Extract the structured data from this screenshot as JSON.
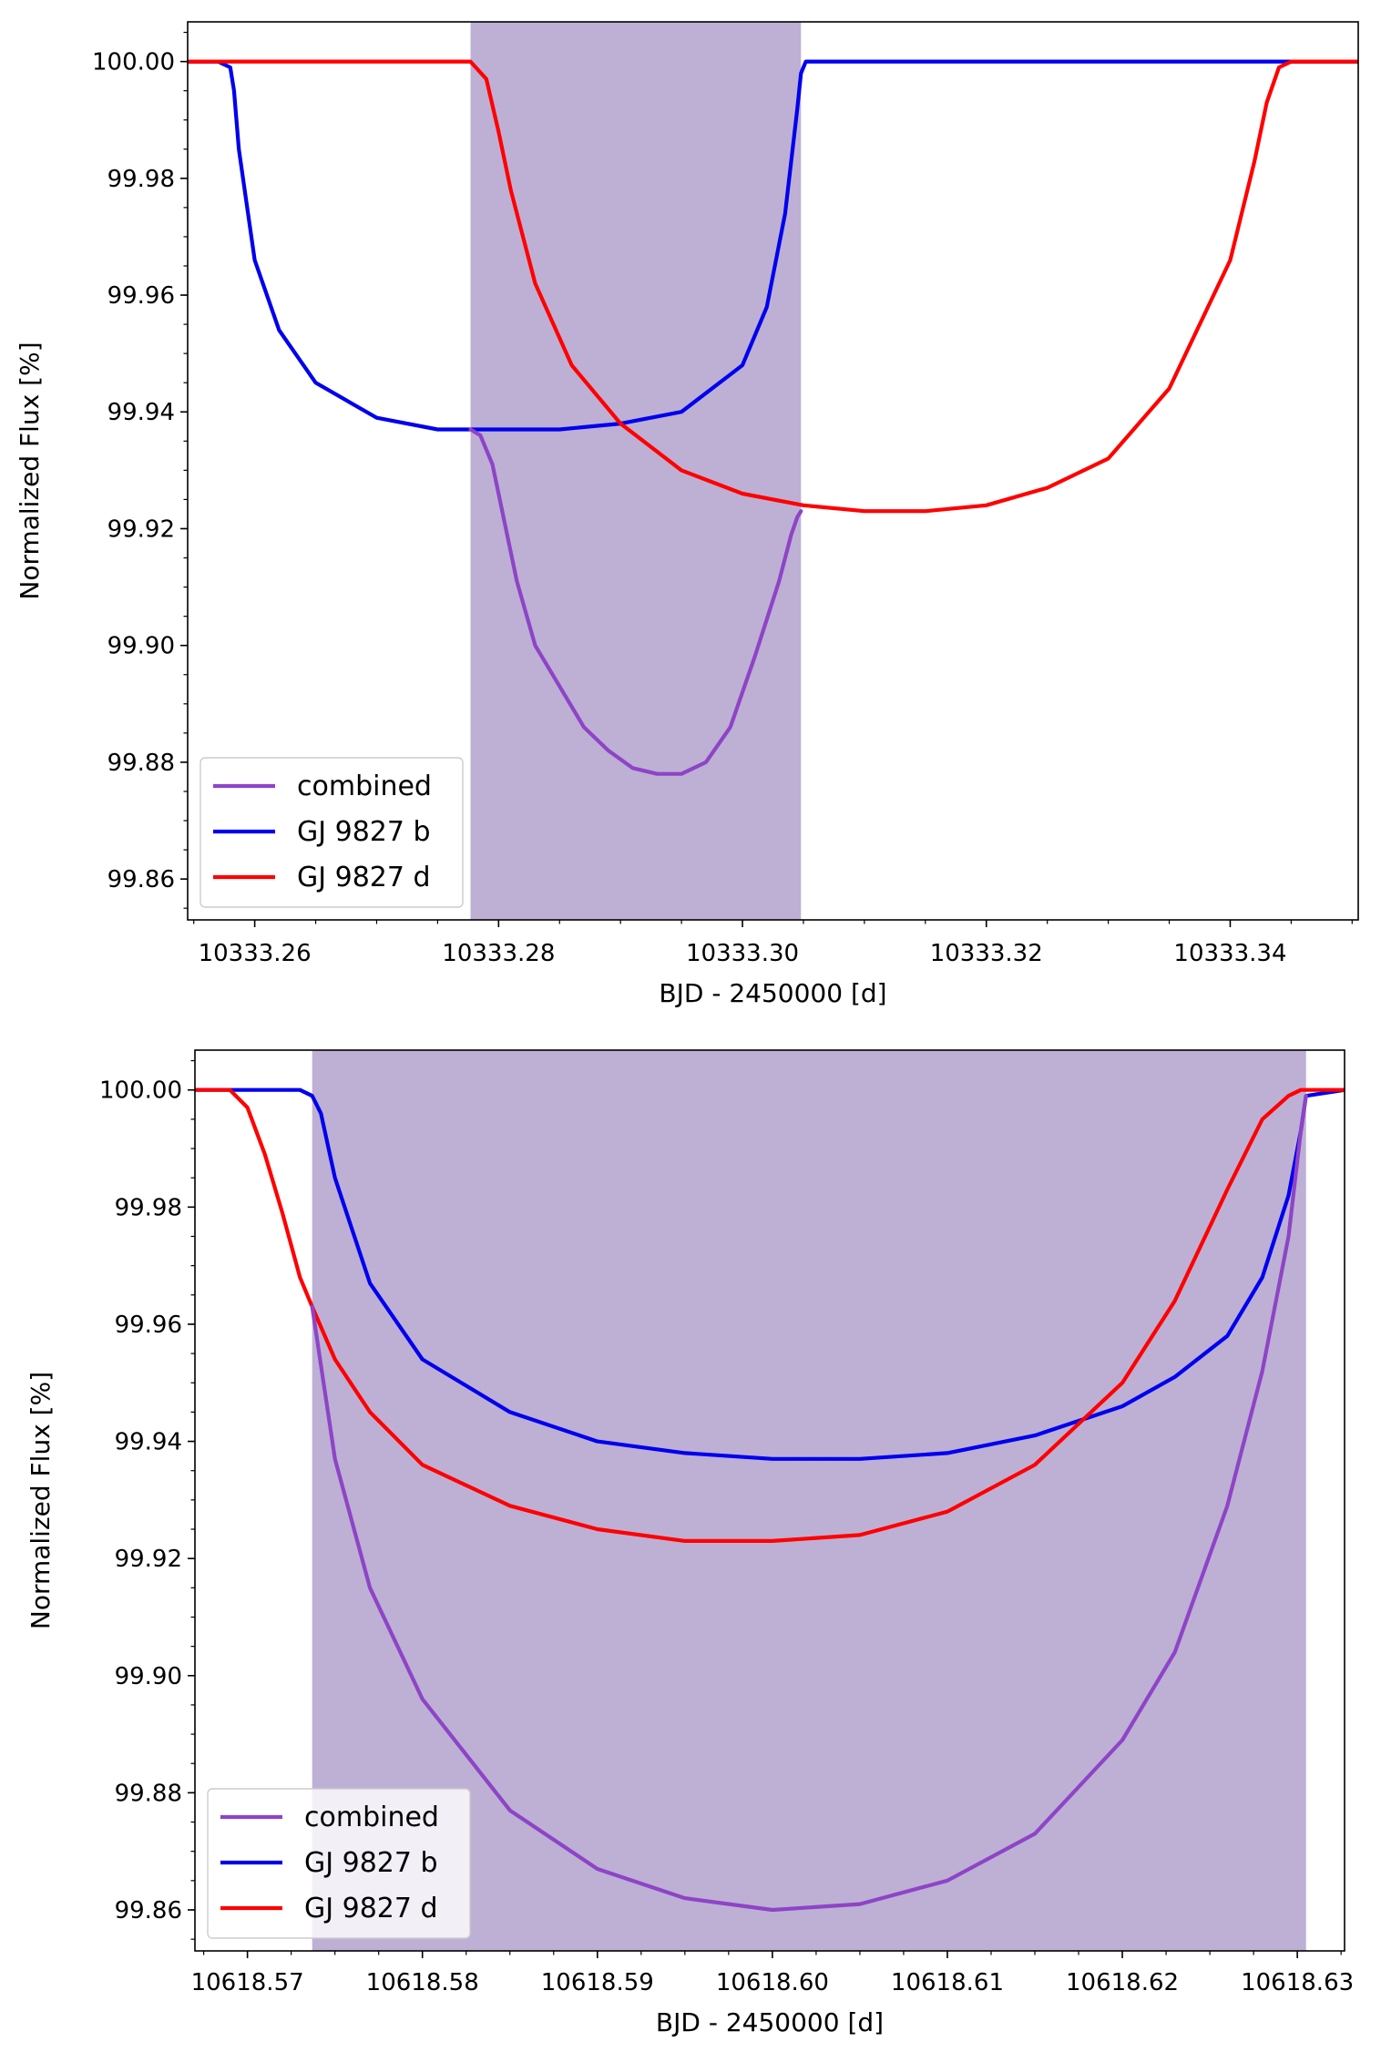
{
  "chart_data": [
    {
      "type": "line",
      "xlabel": "BJD - 2450000 [d]",
      "ylabel": "Normalized Flux [%]",
      "xlim": [
        10333.2545,
        10333.3505
      ],
      "ylim": [
        99.853,
        100.0068
      ],
      "xticks": [
        10333.26,
        10333.28,
        10333.3,
        10333.32,
        10333.34
      ],
      "xtick_labels": [
        "10333.26",
        "10333.28",
        "10333.30",
        "10333.32",
        "10333.34"
      ],
      "yticks": [
        99.86,
        99.88,
        99.9,
        99.92,
        99.94,
        99.96,
        99.98,
        100.0
      ],
      "ytick_labels": [
        "99.86",
        "99.88",
        "99.90",
        "99.92",
        "99.94",
        "99.96",
        "99.98",
        "100.00"
      ],
      "shaded_interval": [
        10333.2777,
        10333.3048
      ],
      "shade_color": "#bdb0d4",
      "legend_position": "lower left",
      "series": [
        {
          "name": "combined",
          "color": "#8e44c7",
          "x": [
            10333.2777,
            10333.2785,
            10333.2795,
            10333.2805,
            10333.2815,
            10333.283,
            10333.285,
            10333.287,
            10333.289,
            10333.291,
            10333.293,
            10333.295,
            10333.297,
            10333.299,
            10333.301,
            10333.303,
            10333.304,
            10333.3045,
            10333.3048
          ],
          "y": [
            99.937,
            99.936,
            99.931,
            99.921,
            99.911,
            99.9,
            99.893,
            99.886,
            99.882,
            99.879,
            99.878,
            99.878,
            99.88,
            99.886,
            99.898,
            99.911,
            99.919,
            99.922,
            99.923
          ]
        },
        {
          "name": "GJ 9827 b",
          "color": "#0000ee",
          "x": [
            10333.2545,
            10333.257,
            10333.258,
            10333.2583,
            10333.2587,
            10333.26,
            10333.262,
            10333.265,
            10333.27,
            10333.275,
            10333.28,
            10333.285,
            10333.29,
            10333.295,
            10333.3,
            10333.302,
            10333.3035,
            10333.3045,
            10333.3048,
            10333.3052,
            10333.31,
            10333.32,
            10333.33,
            10333.345,
            10333.3505
          ],
          "y": [
            100.0,
            100.0,
            99.999,
            99.995,
            99.985,
            99.966,
            99.954,
            99.945,
            99.939,
            99.937,
            99.937,
            99.937,
            99.938,
            99.94,
            99.948,
            99.958,
            99.974,
            99.992,
            99.998,
            100.0,
            100.0,
            100.0,
            100.0,
            100.0,
            100.0
          ]
        },
        {
          "name": "GJ 9827 d",
          "color": "#ff0000",
          "x": [
            10333.2545,
            10333.27,
            10333.2777,
            10333.279,
            10333.28,
            10333.281,
            10333.283,
            10333.286,
            10333.29,
            10333.295,
            10333.3,
            10333.305,
            10333.31,
            10333.315,
            10333.32,
            10333.325,
            10333.33,
            10333.335,
            10333.34,
            10333.342,
            10333.343,
            10333.344,
            10333.345,
            10333.3505
          ],
          "y": [
            100.0,
            100.0,
            100.0,
            99.997,
            99.988,
            99.978,
            99.962,
            99.948,
            99.938,
            99.93,
            99.926,
            99.924,
            99.923,
            99.923,
            99.924,
            99.927,
            99.932,
            99.944,
            99.966,
            99.983,
            99.993,
            99.999,
            100.0,
            100.0
          ]
        }
      ]
    },
    {
      "type": "line",
      "xlabel": "BJD - 2450000 [d]",
      "ylabel": "Normalized Flux [%]",
      "xlim": [
        10618.567,
        10618.6327
      ],
      "ylim": [
        99.853,
        100.0068
      ],
      "xticks": [
        10618.57,
        10618.58,
        10618.59,
        10618.6,
        10618.61,
        10618.62,
        10618.63
      ],
      "xtick_labels": [
        "10618.57",
        "10618.58",
        "10618.59",
        "10618.60",
        "10618.61",
        "10618.62",
        "10618.63"
      ],
      "yticks": [
        99.86,
        99.88,
        99.9,
        99.92,
        99.94,
        99.96,
        99.98,
        100.0
      ],
      "ytick_labels": [
        "99.86",
        "99.88",
        "99.90",
        "99.92",
        "99.94",
        "99.96",
        "99.98",
        "100.00"
      ],
      "shaded_interval": [
        10618.5737,
        10618.6305
      ],
      "shade_color": "#bdb0d4",
      "legend_position": "lower left",
      "series": [
        {
          "name": "combined",
          "color": "#8e44c7",
          "x": [
            10618.5737,
            10618.575,
            10618.577,
            10618.58,
            10618.585,
            10618.59,
            10618.595,
            10618.6,
            10618.605,
            10618.61,
            10618.615,
            10618.62,
            10618.623,
            10618.626,
            10618.628,
            10618.6295,
            10618.6302,
            10618.6305
          ],
          "y": [
            99.963,
            99.937,
            99.915,
            99.896,
            99.877,
            99.867,
            99.862,
            99.86,
            99.861,
            99.865,
            99.873,
            99.889,
            99.904,
            99.929,
            99.952,
            99.975,
            99.993,
            99.999
          ]
        },
        {
          "name": "GJ 9827 b",
          "color": "#0000ee",
          "x": [
            10618.567,
            10618.573,
            10618.5737,
            10618.5742,
            10618.575,
            10618.577,
            10618.58,
            10618.585,
            10618.59,
            10618.595,
            10618.6,
            10618.605,
            10618.61,
            10618.615,
            10618.62,
            10618.623,
            10618.626,
            10618.628,
            10618.6295,
            10618.6302,
            10618.6305,
            10618.6327
          ],
          "y": [
            100.0,
            100.0,
            99.999,
            99.996,
            99.985,
            99.967,
            99.954,
            99.945,
            99.94,
            99.938,
            99.937,
            99.937,
            99.938,
            99.941,
            99.946,
            99.951,
            99.958,
            99.968,
            99.982,
            99.993,
            99.999,
            100.0
          ]
        },
        {
          "name": "GJ 9827 d",
          "color": "#ff0000",
          "x": [
            10618.567,
            10618.569,
            10618.57,
            10618.571,
            10618.572,
            10618.573,
            10618.5737,
            10618.575,
            10618.577,
            10618.58,
            10618.585,
            10618.59,
            10618.595,
            10618.6,
            10618.605,
            10618.61,
            10618.615,
            10618.62,
            10618.623,
            10618.626,
            10618.628,
            10618.6295,
            10618.6302,
            10618.6327
          ],
          "y": [
            100.0,
            100.0,
            99.997,
            99.989,
            99.979,
            99.968,
            99.963,
            99.954,
            99.945,
            99.936,
            99.929,
            99.925,
            99.923,
            99.923,
            99.924,
            99.928,
            99.936,
            99.95,
            99.964,
            99.983,
            99.995,
            99.999,
            100.0,
            100.0
          ]
        }
      ]
    }
  ]
}
